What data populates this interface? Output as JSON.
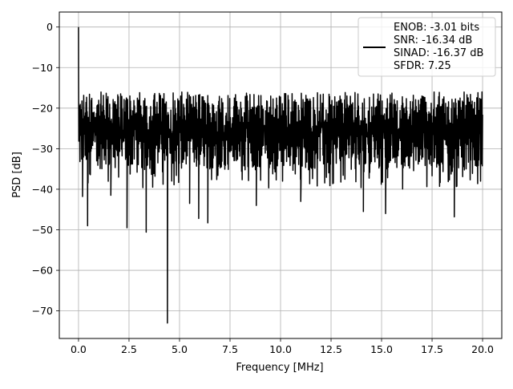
{
  "chart_data": {
    "type": "line",
    "title": "",
    "xlabel": "Frequency [MHz]",
    "ylabel": "PSD [dB]",
    "xlim": [
      -0.95,
      20.95
    ],
    "ylim": [
      -76.8,
      3.7
    ],
    "grid": true,
    "x_ticks": [
      0.0,
      2.5,
      5.0,
      7.5,
      10.0,
      12.5,
      15.0,
      17.5,
      20.0
    ],
    "x_tick_labels": [
      "0.0",
      "2.5",
      "5.0",
      "7.5",
      "10.0",
      "12.5",
      "15.0",
      "17.5",
      "20.0"
    ],
    "y_ticks": [
      0,
      -10,
      -20,
      -30,
      -40,
      -50,
      -60,
      -70
    ],
    "y_tick_labels": [
      "0",
      "−10",
      "−20",
      "−30",
      "−40",
      "−50",
      "−60",
      "−70"
    ],
    "legend": {
      "placement": "top-right",
      "entries": [
        "ENOB: -3.01 bits",
        "SNR: -16.34 dB",
        "SINAD: -16.37 dB",
        "SFDR: 7.25"
      ]
    },
    "series": [
      {
        "color": "#000000",
        "x_range": [
          0.0,
          20.0
        ],
        "noise_floor_band": [
          -35,
          -16
        ],
        "peak": {
          "x": 0.0,
          "y": 0.0
        },
        "deep_nulls": [
          {
            "x": 0.2,
            "y": -41.8
          },
          {
            "x": 0.45,
            "y": -49.0
          },
          {
            "x": 1.6,
            "y": -41.5
          },
          {
            "x": 2.4,
            "y": -49.5
          },
          {
            "x": 3.35,
            "y": -50.6
          },
          {
            "x": 4.4,
            "y": -73.0
          },
          {
            "x": 5.5,
            "y": -43.5
          },
          {
            "x": 5.95,
            "y": -47.2
          },
          {
            "x": 6.4,
            "y": -48.3
          },
          {
            "x": 8.8,
            "y": -44.0
          },
          {
            "x": 11.0,
            "y": -43.0
          },
          {
            "x": 14.1,
            "y": -45.5
          },
          {
            "x": 15.2,
            "y": -46.0
          },
          {
            "x": 18.6,
            "y": -46.8
          }
        ]
      }
    ]
  }
}
